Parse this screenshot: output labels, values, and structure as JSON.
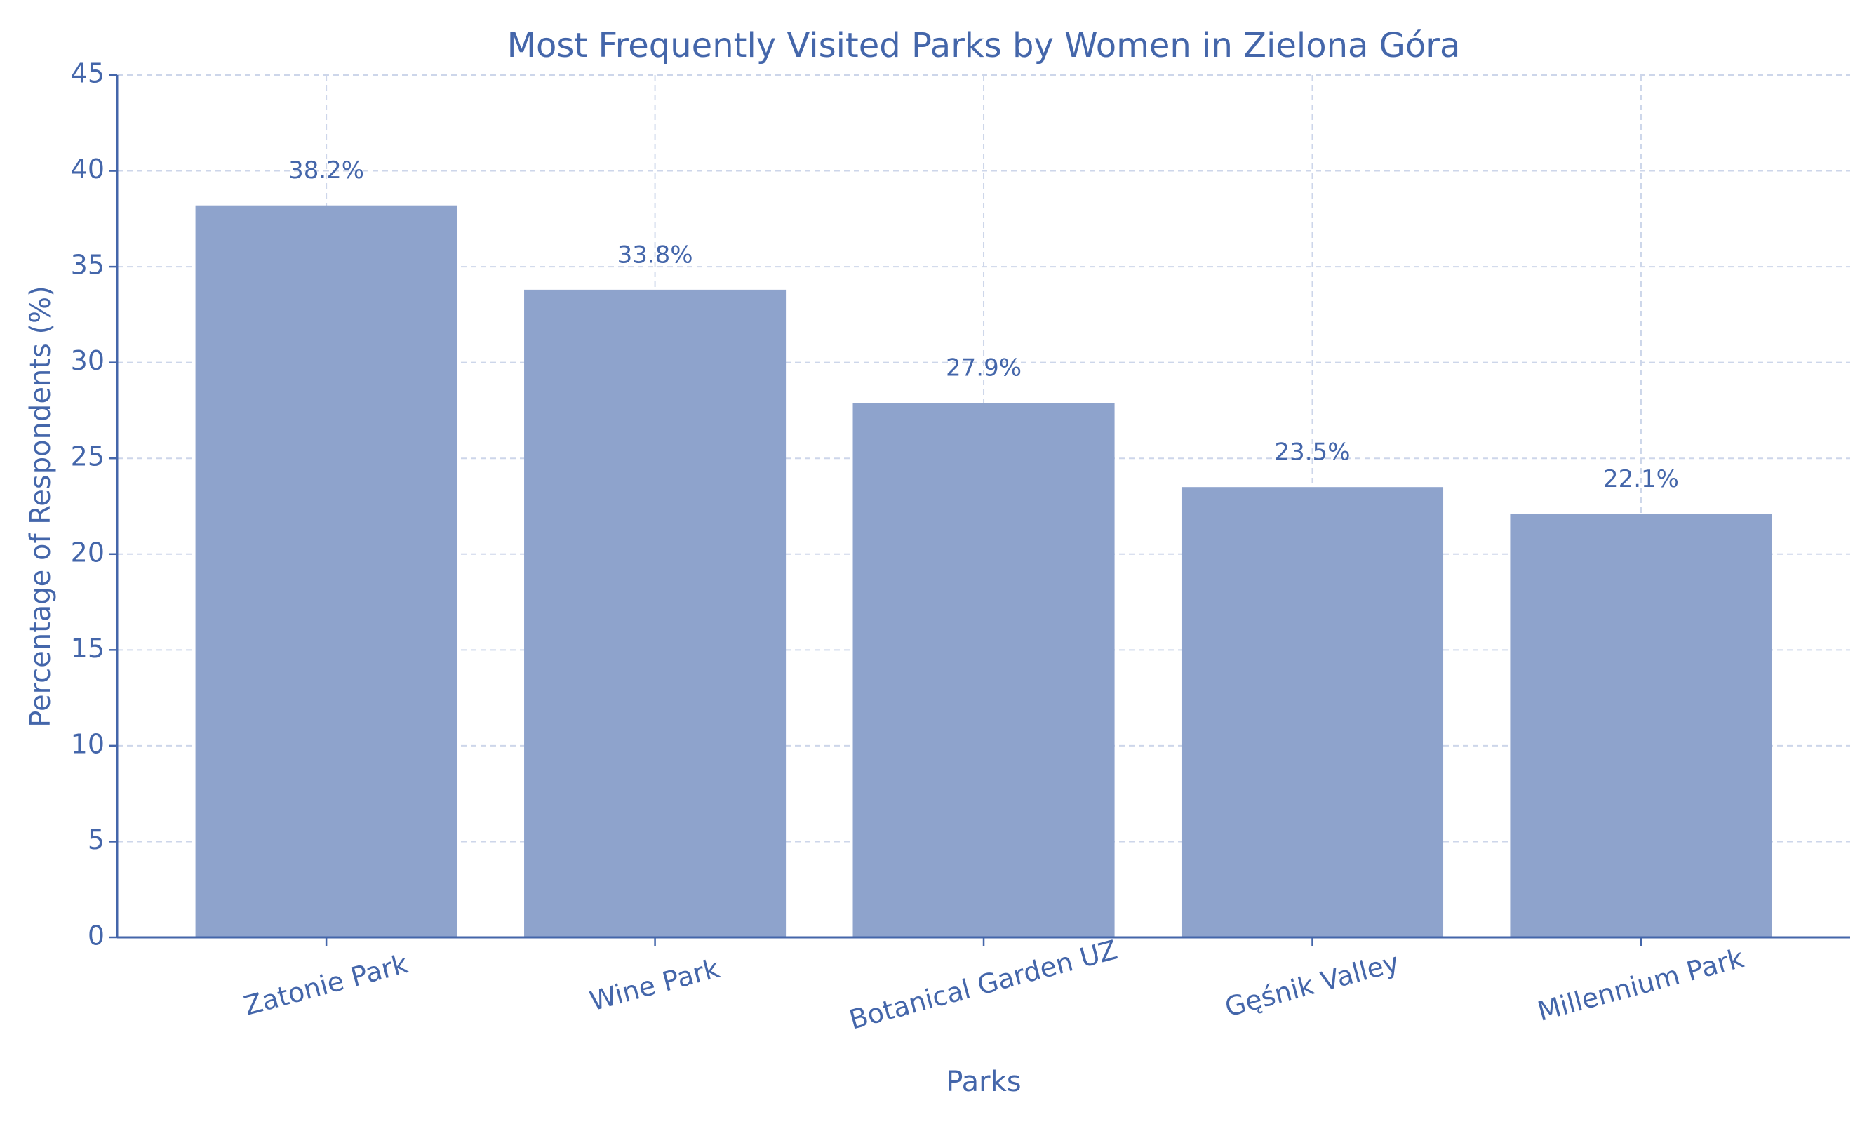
{
  "chart_data": {
    "type": "bar",
    "title": "Most Frequently Visited Parks by Women in Zielona Góra",
    "x_label": "Parks",
    "y_label": "Percentage of Respondents (%)",
    "categories": [
      "Zatonie Park",
      "Wine Park",
      "Botanical Garden UZ",
      "Gęśnik Valley",
      "Millennium Park"
    ],
    "values": [
      38.2,
      33.8,
      27.9,
      23.5,
      22.1
    ],
    "value_labels": [
      "38.2%",
      "33.8%",
      "27.9%",
      "23.5%",
      "22.1%"
    ],
    "color": "#8ea3cc",
    "ylim": [
      0,
      45
    ],
    "yticks": [
      0,
      5,
      10,
      15,
      20,
      25,
      30,
      35,
      40,
      45
    ],
    "grid": true
  }
}
